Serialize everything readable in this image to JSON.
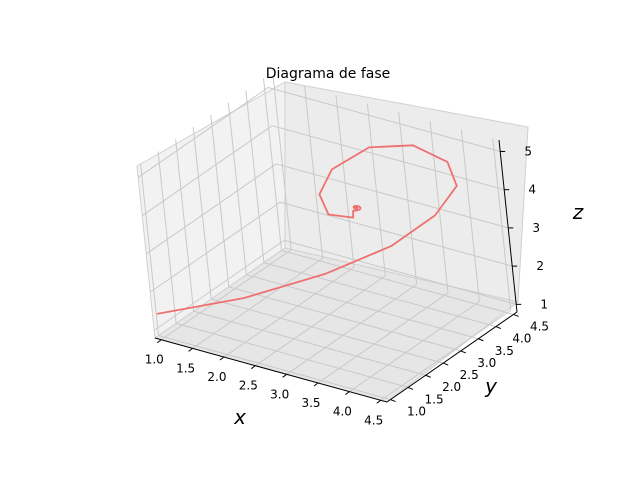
{
  "chart_data": {
    "type": "line3d",
    "title": "Diagrama de fase",
    "xlabel": "x",
    "ylabel": "y",
    "zlabel": "z",
    "xticks": [
      "1.0",
      "1.5",
      "2.0",
      "2.5",
      "3.0",
      "3.5",
      "4.0",
      "4.5"
    ],
    "yticks": [
      "1.0",
      "1.5",
      "2.0",
      "2.5",
      "3.0",
      "3.5",
      "4.0",
      "4.5"
    ],
    "zticks": [
      "1",
      "2",
      "3",
      "4",
      "5"
    ],
    "xlim": [
      0.9,
      4.6
    ],
    "ylim": [
      0.9,
      4.6
    ],
    "zlim": [
      0.8,
      5.3
    ],
    "series": [
      {
        "color": "#f07070",
        "spiral": {
          "start": [
            0.8,
            1.2,
            1.2
          ],
          "outer_loop": [
            [
              2.0,
              1.6,
              1.9
            ],
            [
              3.0,
              2.2,
              2.6
            ],
            [
              3.7,
              2.9,
              3.2
            ],
            [
              4.1,
              3.5,
              3.8
            ],
            [
              4.2,
              4.0,
              4.3
            ],
            [
              3.9,
              4.3,
              4.6
            ],
            [
              3.3,
              4.4,
              4.7
            ],
            [
              2.7,
              4.2,
              4.5
            ],
            [
              2.3,
              3.8,
              4.0
            ],
            [
              2.3,
              3.4,
              3.6
            ],
            [
              2.6,
              3.1,
              3.4
            ],
            [
              3.0,
              3.1,
              3.5
            ]
          ],
          "center": [
            3.0,
            3.2,
            3.7
          ]
        }
      }
    ]
  }
}
